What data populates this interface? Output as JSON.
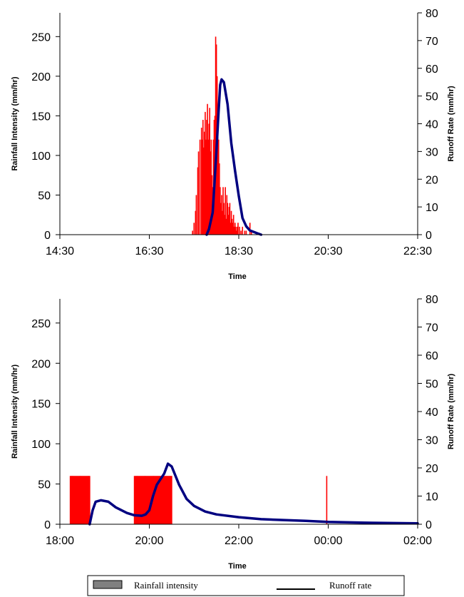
{
  "colors": {
    "rain": "#ff0000",
    "runoff": "#000080",
    "axis": "#000000",
    "legend_swatch": "#808080"
  },
  "legend": {
    "rain_label": "Rainfall intensity",
    "runoff_label": "Runoff rate"
  },
  "chart_data": [
    {
      "type": "bar",
      "xlabel": "Time",
      "ylabel": "Rainfall Intensity (mm/hr)",
      "y2label": "Runoff Rate (mm/hr)",
      "xlim": [
        "14:30",
        "22:30"
      ],
      "x_ticks": [
        "14:30",
        "16:30",
        "18:30",
        "20:30",
        "22:30"
      ],
      "ylim": [
        0,
        280
      ],
      "y_ticks": [
        "0",
        "50",
        "100",
        "150",
        "200",
        "250"
      ],
      "y2lim": [
        0,
        80
      ],
      "y2_ticks": [
        "0",
        "10",
        "20",
        "30",
        "40",
        "50",
        "60",
        "70",
        "80"
      ],
      "grid": false,
      "series": [
        {
          "name": "Rainfall intensity",
          "type": "bar",
          "axis": "left",
          "x": [
            "17:28",
            "17:30",
            "17:32",
            "17:33",
            "17:35",
            "17:36",
            "17:38",
            "17:40",
            "17:41",
            "17:42",
            "17:43",
            "17:44",
            "17:45",
            "17:46",
            "17:47",
            "17:48",
            "17:49",
            "17:50",
            "17:51",
            "17:52",
            "17:53",
            "17:54",
            "17:55",
            "17:56",
            "17:57",
            "17:58",
            "17:59",
            "18:00",
            "18:01",
            "18:02",
            "18:03",
            "18:04",
            "18:05",
            "18:06",
            "18:07",
            "18:08",
            "18:09",
            "18:10",
            "18:11",
            "18:12",
            "18:13",
            "18:14",
            "18:15",
            "18:16",
            "18:17",
            "18:18",
            "18:19",
            "18:20",
            "18:21",
            "18:22",
            "18:23",
            "18:24",
            "18:25",
            "18:26",
            "18:27",
            "18:28",
            "18:29",
            "18:31",
            "18:33",
            "18:35",
            "18:38",
            "18:40",
            "18:45",
            "18:47"
          ],
          "values": [
            5,
            15,
            30,
            50,
            85,
            105,
            120,
            135,
            120,
            145,
            110,
            130,
            155,
            120,
            145,
            165,
            120,
            140,
            160,
            105,
            120,
            75,
            60,
            120,
            145,
            150,
            250,
            240,
            200,
            160,
            120,
            90,
            60,
            40,
            50,
            30,
            60,
            40,
            25,
            60,
            20,
            50,
            40,
            25,
            35,
            40,
            15,
            30,
            20,
            15,
            25,
            10,
            15,
            10,
            5,
            10,
            15,
            10,
            5,
            10,
            5,
            5,
            15,
            5
          ]
        },
        {
          "name": "Runoff rate",
          "type": "line",
          "axis": "right",
          "x": [
            "17:47",
            "17:50",
            "17:55",
            "18:00",
            "18:03",
            "18:05",
            "18:07",
            "18:10",
            "18:15",
            "18:20",
            "18:25",
            "18:30",
            "18:35",
            "18:40",
            "18:45",
            "18:50",
            "18:55",
            "19:00"
          ],
          "values": [
            0,
            2,
            8,
            30,
            45,
            54,
            56,
            55,
            47,
            33,
            23,
            14,
            6,
            3,
            1.5,
            1,
            0.5,
            0
          ]
        }
      ]
    },
    {
      "type": "bar",
      "xlabel": "Time",
      "ylabel": "Rainfall Intensity (mm/hr)",
      "y2label": "Runoff Rate (mm/hr)",
      "xlim": [
        "18:00",
        "02:00"
      ],
      "x_ticks": [
        "18:00",
        "20:00",
        "22:00",
        "00:00",
        "02:00"
      ],
      "ylim": [
        0,
        280
      ],
      "y_ticks": [
        "0",
        "50",
        "100",
        "150",
        "200",
        "250"
      ],
      "y2lim": [
        0,
        80
      ],
      "y2_ticks": [
        "0",
        "10",
        "20",
        "30",
        "40",
        "50",
        "60",
        "70",
        "80"
      ],
      "grid": false,
      "series": [
        {
          "name": "Rainfall intensity",
          "type": "bar",
          "axis": "left",
          "x": [
            "18:14",
            "18:15",
            "18:16",
            "18:17",
            "18:18",
            "18:19",
            "18:20",
            "18:21",
            "18:22",
            "18:23",
            "18:24",
            "18:25",
            "18:26",
            "18:27",
            "18:28",
            "18:29",
            "18:30",
            "18:31",
            "18:32",
            "18:33",
            "18:34",
            "18:35",
            "18:36",
            "18:37",
            "18:38",
            "18:39",
            "18:40",
            "19:40",
            "19:41",
            "19:42",
            "19:43",
            "19:44",
            "19:45",
            "19:46",
            "19:47",
            "19:48",
            "19:49",
            "19:50",
            "19:51",
            "19:52",
            "19:53",
            "19:54",
            "19:55",
            "19:56",
            "19:57",
            "19:58",
            "19:59",
            "20:00",
            "20:01",
            "20:02",
            "20:03",
            "20:04",
            "20:05",
            "20:06",
            "20:07",
            "20:08",
            "20:09",
            "20:10",
            "20:11",
            "20:12",
            "20:13",
            "20:14",
            "20:15",
            "20:16",
            "20:17",
            "20:18",
            "20:19",
            "20:20",
            "20:21",
            "20:22",
            "20:23",
            "20:24",
            "20:25",
            "20:26",
            "20:27",
            "20:28",
            "20:29",
            "20:30",
            "23:58"
          ],
          "values": [
            60,
            60,
            60,
            60,
            60,
            60,
            60,
            60,
            60,
            60,
            60,
            60,
            60,
            60,
            60,
            60,
            60,
            60,
            60,
            60,
            60,
            60,
            60,
            60,
            60,
            60,
            60,
            60,
            60,
            60,
            60,
            60,
            60,
            60,
            60,
            60,
            60,
            60,
            60,
            60,
            60,
            60,
            60,
            60,
            60,
            60,
            60,
            60,
            60,
            60,
            60,
            60,
            60,
            60,
            60,
            60,
            60,
            60,
            60,
            60,
            60,
            60,
            60,
            60,
            60,
            60,
            60,
            60,
            60,
            60,
            60,
            60,
            60,
            60,
            60,
            60,
            60,
            60,
            60
          ]
        },
        {
          "name": "Runoff rate",
          "type": "line",
          "axis": "right",
          "x": [
            "18:40",
            "18:44",
            "18:48",
            "18:55",
            "19:05",
            "19:15",
            "19:30",
            "19:40",
            "19:50",
            "19:55",
            "20:00",
            "20:05",
            "20:10",
            "20:15",
            "20:20",
            "20:25",
            "20:30",
            "20:40",
            "20:50",
            "21:00",
            "21:15",
            "21:30",
            "22:00",
            "22:30",
            "23:00",
            "23:30",
            "00:00",
            "01:00",
            "02:00"
          ],
          "values": [
            0,
            5,
            8,
            8.5,
            8,
            6,
            4,
            3.2,
            3,
            3.5,
            5,
            10,
            14,
            16,
            18,
            21.5,
            20.5,
            14,
            9,
            6.5,
            4.5,
            3.5,
            2.5,
            1.8,
            1.5,
            1.2,
            0.8,
            0.5,
            0.3
          ]
        }
      ]
    }
  ]
}
